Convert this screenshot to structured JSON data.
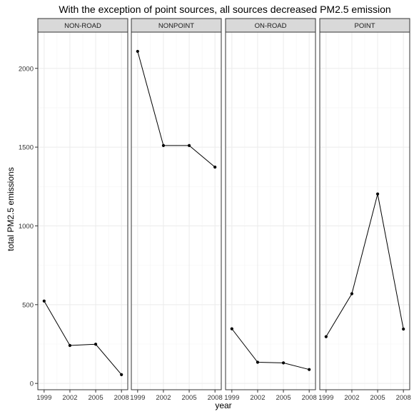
{
  "chart_data": {
    "type": "line",
    "title": "With the exception of point sources, all sources decreased PM2.5 emission",
    "xlabel": "year",
    "ylabel": "total PM2.5 emissions",
    "x": [
      1999,
      2002,
      2005,
      2008
    ],
    "x_ticks": [
      "1999",
      "2002",
      "2005",
      "2008"
    ],
    "y_ticks": [
      0,
      500,
      1000,
      1500,
      2000
    ],
    "ylim": [
      -40,
      2230
    ],
    "grid": true,
    "facet_by": "type",
    "facets": [
      {
        "name": "NON-ROAD",
        "values": [
          522.9,
          240.8,
          248.9,
          55.8
        ]
      },
      {
        "name": "NONPOINT",
        "values": [
          2108,
          1510,
          1510,
          1373
        ]
      },
      {
        "name": "ON-ROAD",
        "values": [
          346.8,
          134.3,
          130.4,
          88.3
        ]
      },
      {
        "name": "POINT",
        "values": [
          296.8,
          569.3,
          1202.5,
          344.98
        ]
      }
    ],
    "colors": {
      "line": "#000000",
      "point": "#000000",
      "strip_fill": "#d9d9d9",
      "panel_border": "#333333",
      "grid_major": "#ebebeb",
      "grid_minor": "#f5f5f5"
    }
  }
}
